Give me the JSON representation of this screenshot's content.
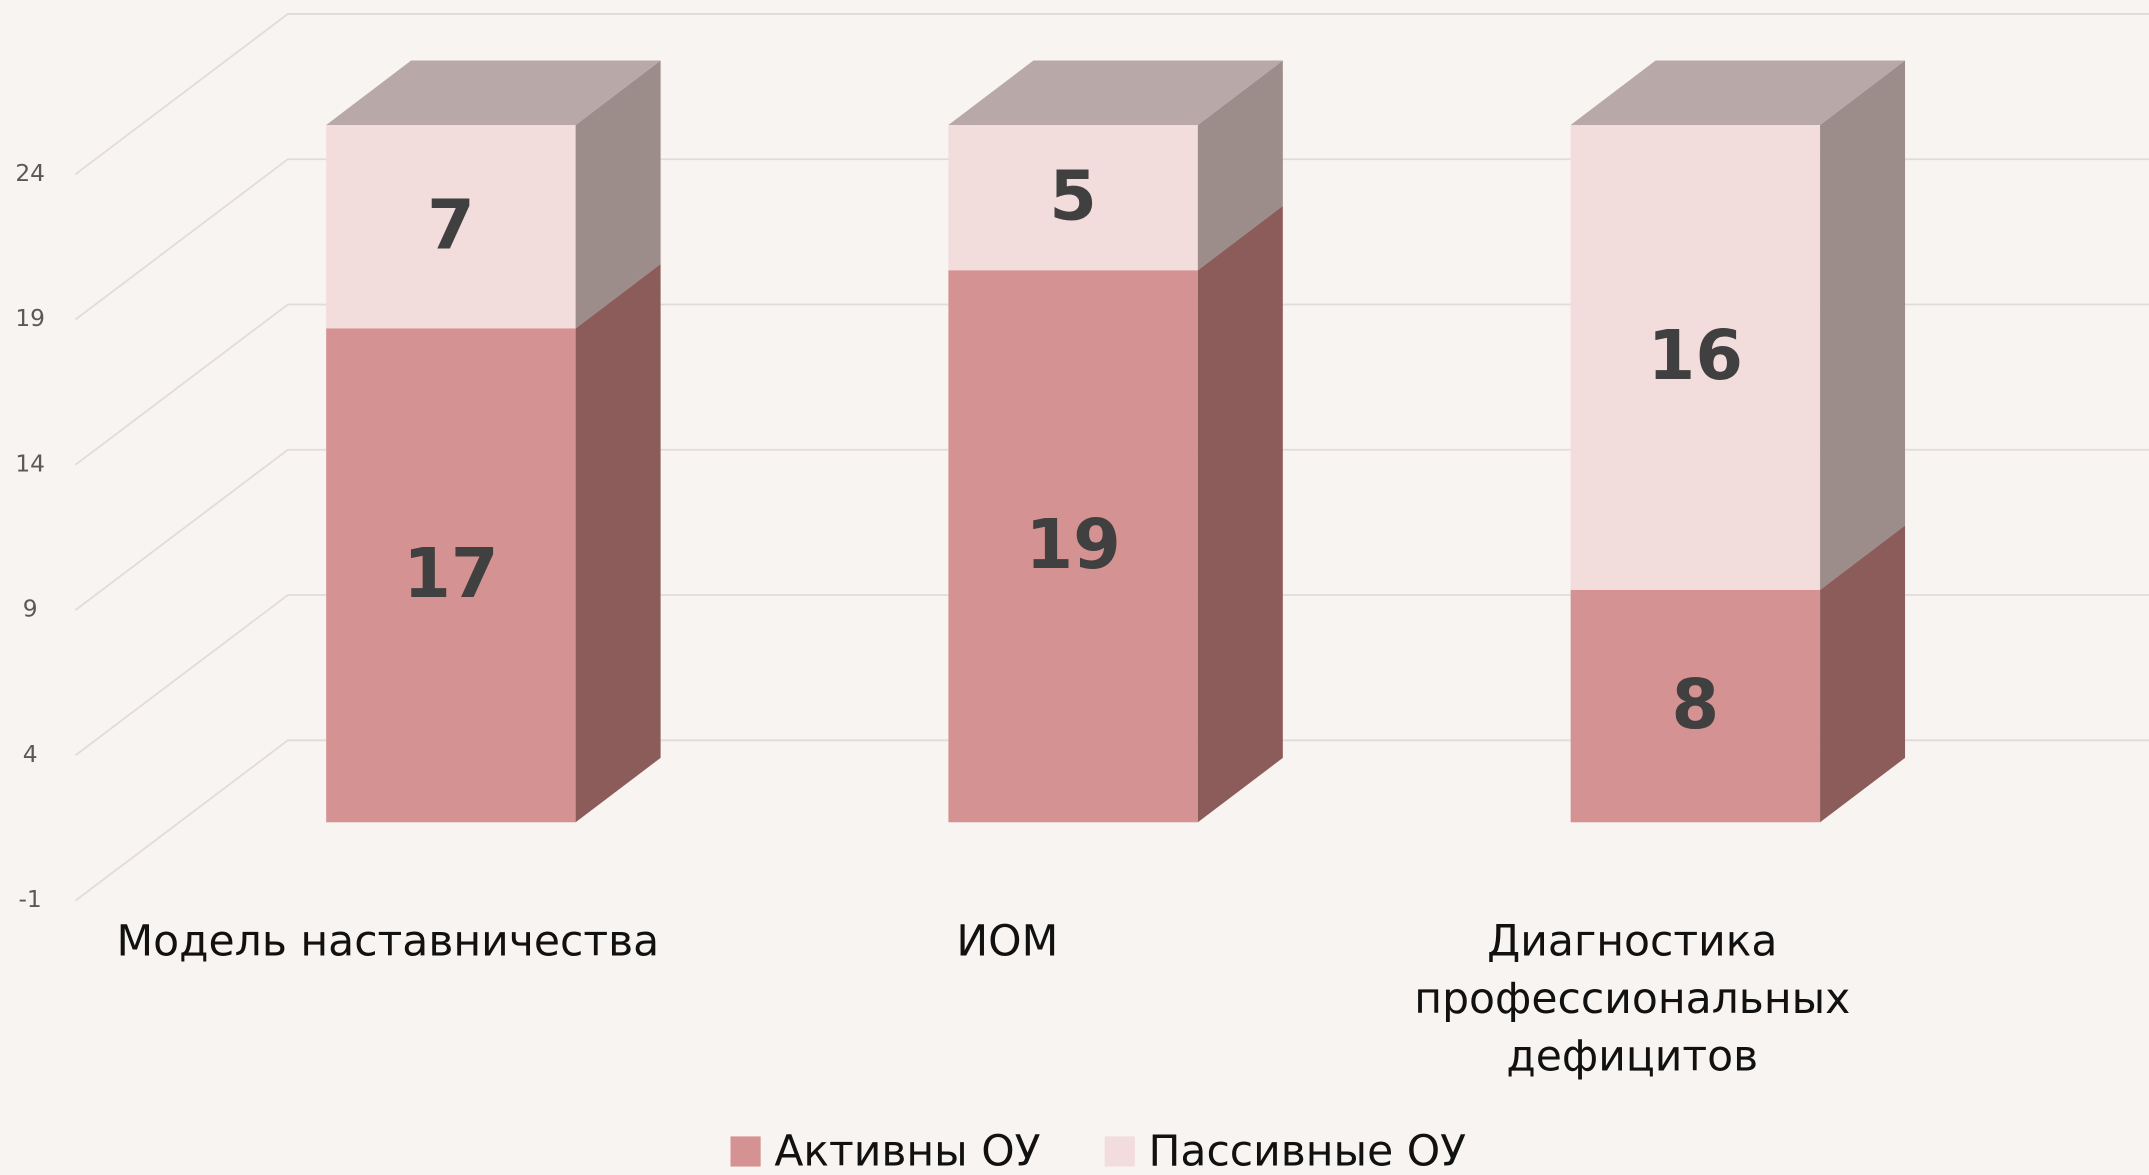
{
  "chart_data": {
    "type": "bar3d_stacked",
    "categories": [
      "Модель наставничества",
      "ИОМ",
      "Диагностика профессиональных дефицитов"
    ],
    "series": [
      {
        "name": "Активны ОУ",
        "color": "#d49292",
        "values": [
          17,
          19,
          8
        ]
      },
      {
        "name": "Пассивные ОУ",
        "color": "#f2dcdc",
        "values": [
          7,
          5,
          16
        ]
      }
    ],
    "ylim": [
      -1,
      24
    ],
    "yticks": [
      -1,
      4,
      9,
      14,
      19,
      24
    ],
    "grid": true,
    "legend": "bottom"
  }
}
